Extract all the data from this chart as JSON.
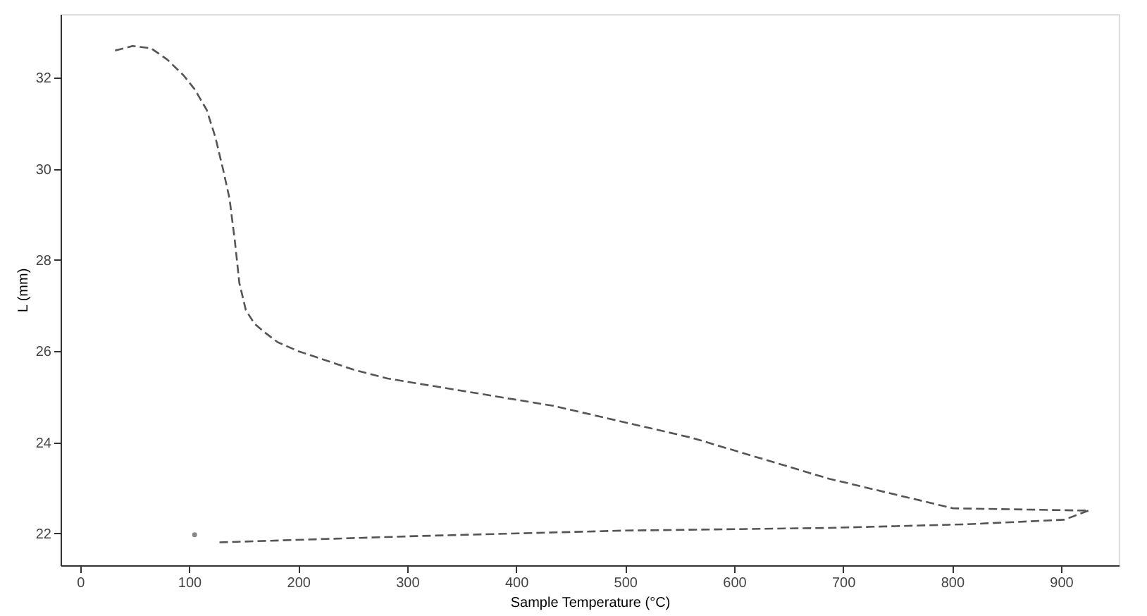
{
  "chart_data": {
    "type": "line",
    "xlabel": "Sample Temperature (°C)",
    "ylabel": "L (mm)",
    "xlim": [
      -18,
      953
    ],
    "xticks": [
      0,
      100,
      200,
      300,
      400,
      500,
      600,
      700,
      800,
      900
    ],
    "ylim": [
      21.3,
      33.4
    ],
    "yticks": [
      22,
      24,
      26,
      28,
      30,
      32
    ],
    "grid": false,
    "line_style": "dashed",
    "marker": "none",
    "series": [
      {
        "color": "#555555",
        "x": [
          32,
          48,
          65,
          80,
          95,
          105,
          116,
          124,
          131,
          137,
          142,
          146,
          152,
          160,
          170,
          181,
          200,
          219,
          250,
          282,
          358,
          434,
          561,
          687,
          801,
          925
        ],
        "values": [
          32.6,
          32.7,
          32.65,
          32.4,
          32.05,
          31.75,
          31.3,
          30.7,
          30.0,
          29.35,
          28.4,
          27.5,
          26.9,
          26.6,
          26.4,
          26.2,
          26.0,
          25.85,
          25.6,
          25.4,
          25.1,
          24.8,
          24.1,
          23.2,
          22.55,
          22.5
        ]
      },
      {
        "color": "#555555",
        "x": [
          925,
          903,
          814,
          687,
          497,
          308,
          124
        ],
        "values": [
          22.5,
          22.3,
          22.2,
          22.12,
          22.06,
          21.94,
          21.8
        ]
      },
      {
        "type": "scatter",
        "color": "#555555",
        "x": [
          105
        ],
        "values": [
          21.97
        ]
      }
    ]
  }
}
